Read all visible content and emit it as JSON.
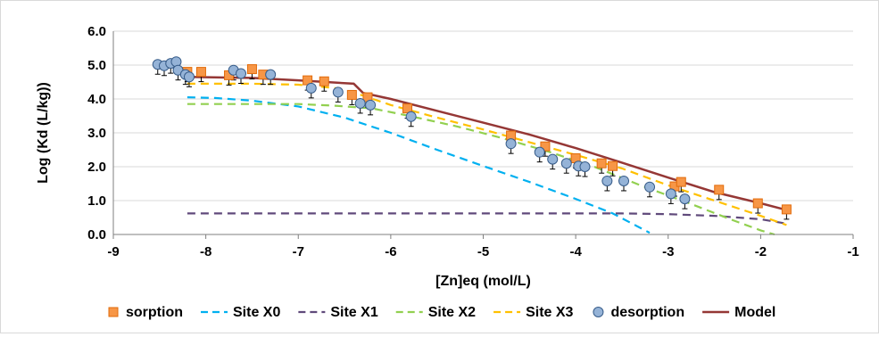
{
  "chart_data": {
    "type": "scatter",
    "xlabel": "[Zn]eq (mol/L)",
    "ylabel": "Log (Kd (L/kg))",
    "xlim": [
      -9,
      -1
    ],
    "ylim": [
      0,
      6
    ],
    "xticks": [
      "-9",
      "-8",
      "-7",
      "-6",
      "-5",
      "-4",
      "-3",
      "-2",
      "-1"
    ],
    "yticks": [
      "0.0",
      "1.0",
      "2.0",
      "3.0",
      "4.0",
      "5.0",
      "6.0"
    ],
    "grid": "horizontal",
    "legend_position": "bottom",
    "series": [
      {
        "name": "sorption",
        "kind": "marker",
        "marker": "square",
        "color": "#f79646",
        "edge": "#e26b0a",
        "points": [
          [
            -8.2,
            4.8
          ],
          [
            -8.05,
            4.8
          ],
          [
            -7.75,
            4.7
          ],
          [
            -7.5,
            4.88
          ],
          [
            -7.38,
            4.72
          ],
          [
            -6.9,
            4.55
          ],
          [
            -6.72,
            4.52
          ],
          [
            -6.42,
            4.12
          ],
          [
            -6.25,
            4.05
          ],
          [
            -5.82,
            3.72
          ],
          [
            -4.7,
            2.92
          ],
          [
            -4.33,
            2.6
          ],
          [
            -4.0,
            2.25
          ],
          [
            -3.72,
            2.1
          ],
          [
            -3.6,
            2.02
          ],
          [
            -2.93,
            1.42
          ],
          [
            -2.86,
            1.55
          ],
          [
            -2.45,
            1.32
          ],
          [
            -2.03,
            0.92
          ],
          [
            -1.72,
            0.74
          ]
        ]
      },
      {
        "name": "desorption",
        "kind": "marker",
        "marker": "circle",
        "color": "#95b3d7",
        "edge": "#385d8a",
        "points": [
          [
            -8.52,
            5.02
          ],
          [
            -8.45,
            4.98
          ],
          [
            -8.38,
            5.05
          ],
          [
            -8.32,
            5.1
          ],
          [
            -8.3,
            4.85
          ],
          [
            -8.22,
            4.72
          ],
          [
            -8.18,
            4.65
          ],
          [
            -7.7,
            4.85
          ],
          [
            -7.62,
            4.75
          ],
          [
            -7.3,
            4.72
          ],
          [
            -6.86,
            4.32
          ],
          [
            -6.57,
            4.2
          ],
          [
            -6.33,
            3.87
          ],
          [
            -6.22,
            3.82
          ],
          [
            -5.78,
            3.48
          ],
          [
            -4.7,
            2.68
          ],
          [
            -4.39,
            2.43
          ],
          [
            -4.25,
            2.22
          ],
          [
            -4.1,
            2.1
          ],
          [
            -3.97,
            2.02
          ],
          [
            -3.9,
            2.0
          ],
          [
            -3.66,
            1.58
          ],
          [
            -3.48,
            1.58
          ],
          [
            -3.2,
            1.4
          ],
          [
            -2.97,
            1.2
          ],
          [
            -2.82,
            1.05
          ]
        ]
      },
      {
        "name": "Site X0",
        "kind": "line",
        "color": "#00b0f0",
        "dash": "dashed",
        "points": [
          [
            -8.2,
            4.05
          ],
          [
            -7.9,
            4.03
          ],
          [
            -7.5,
            3.95
          ],
          [
            -7.0,
            3.78
          ],
          [
            -6.5,
            3.45
          ],
          [
            -6.0,
            3.0
          ],
          [
            -5.5,
            2.5
          ],
          [
            -5.0,
            2.02
          ],
          [
            -4.5,
            1.55
          ],
          [
            -4.0,
            1.05
          ],
          [
            -3.6,
            0.62
          ],
          [
            -3.2,
            0.05
          ]
        ]
      },
      {
        "name": "Site X1",
        "kind": "line",
        "color": "#604a7b",
        "dash": "dashed",
        "points": [
          [
            -8.2,
            0.62
          ],
          [
            -7.0,
            0.62
          ],
          [
            -6.0,
            0.62
          ],
          [
            -5.0,
            0.62
          ],
          [
            -4.0,
            0.62
          ],
          [
            -3.5,
            0.62
          ],
          [
            -3.0,
            0.6
          ],
          [
            -2.5,
            0.55
          ],
          [
            -2.0,
            0.45
          ],
          [
            -1.72,
            0.32
          ]
        ]
      },
      {
        "name": "Site X2",
        "kind": "line",
        "color": "#92d050",
        "dash": "dashed",
        "points": [
          [
            -8.2,
            3.85
          ],
          [
            -7.5,
            3.85
          ],
          [
            -7.0,
            3.85
          ],
          [
            -6.6,
            3.8
          ],
          [
            -6.2,
            3.72
          ],
          [
            -5.8,
            3.5
          ],
          [
            -5.3,
            3.2
          ],
          [
            -4.8,
            2.85
          ],
          [
            -4.3,
            2.45
          ],
          [
            -3.8,
            2.0
          ],
          [
            -3.3,
            1.45
          ],
          [
            -2.8,
            0.95
          ],
          [
            -2.3,
            0.42
          ],
          [
            -2.0,
            0.12
          ],
          [
            -1.85,
            0.0
          ]
        ]
      },
      {
        "name": "Site X3",
        "kind": "line",
        "color": "#ffc000",
        "dash": "dashed",
        "points": [
          [
            -8.2,
            4.45
          ],
          [
            -7.5,
            4.45
          ],
          [
            -7.0,
            4.42
          ],
          [
            -6.6,
            4.32
          ],
          [
            -6.3,
            4.1
          ],
          [
            -6.0,
            3.82
          ],
          [
            -5.5,
            3.45
          ],
          [
            -5.0,
            3.1
          ],
          [
            -4.5,
            2.72
          ],
          [
            -4.0,
            2.35
          ],
          [
            -3.5,
            1.95
          ],
          [
            -3.0,
            1.45
          ],
          [
            -2.5,
            1.0
          ],
          [
            -2.0,
            0.55
          ],
          [
            -1.72,
            0.28
          ]
        ]
      },
      {
        "name": "Model",
        "kind": "line",
        "color": "#953735",
        "dash": "solid",
        "points": [
          [
            -8.2,
            4.65
          ],
          [
            -7.5,
            4.62
          ],
          [
            -7.0,
            4.55
          ],
          [
            -6.4,
            4.45
          ],
          [
            -6.3,
            4.18
          ],
          [
            -6.0,
            4.0
          ],
          [
            -5.5,
            3.65
          ],
          [
            -5.0,
            3.3
          ],
          [
            -4.5,
            2.95
          ],
          [
            -4.0,
            2.55
          ],
          [
            -3.5,
            2.12
          ],
          [
            -3.0,
            1.68
          ],
          [
            -2.5,
            1.25
          ],
          [
            -2.0,
            0.92
          ],
          [
            -1.72,
            0.72
          ]
        ]
      }
    ]
  }
}
